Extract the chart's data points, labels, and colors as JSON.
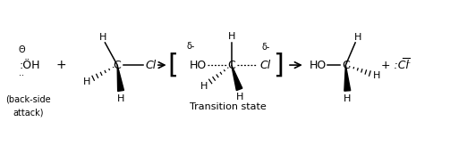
{
  "fig_width": 5.22,
  "fig_height": 1.64,
  "dpi": 100,
  "bg_color": "#ffffff",
  "text_color": "#000000",
  "xlim": [
    0,
    10.5
  ],
  "ylim": [
    0,
    3.1
  ],
  "font_size": 9,
  "small_font": 8
}
